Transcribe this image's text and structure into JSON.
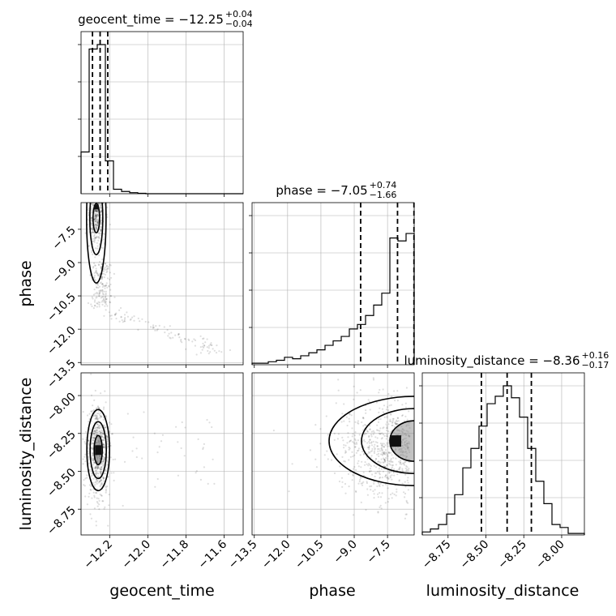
{
  "chart_data": {
    "type": "corner",
    "grid": true,
    "parameters": [
      "geocent_time",
      "phase",
      "luminosity_distance"
    ],
    "axis_labels": {
      "geocent_time": "geocent_time",
      "phase": "phase",
      "luminosity_distance": "luminosity_distance"
    },
    "ranges": {
      "geocent_time": [
        -12.35,
        -11.5
      ],
      "phase": [
        -13.6,
        -6.3
      ],
      "luminosity_distance": [
        -8.92,
        -7.85
      ]
    },
    "ticks": {
      "geocent_time": {
        "values": [
          -12.2,
          -12.0,
          -11.8,
          -11.6
        ],
        "labels": [
          "−12.2",
          "−12.0",
          "−11.8",
          "−11.6"
        ]
      },
      "phase_x": {
        "values": [
          -13.5,
          -12.0,
          -10.5,
          -9.0,
          -7.5
        ],
        "labels": [
          "−13.5",
          "−12.0",
          "−10.5",
          "−9.0",
          "−7.5"
        ]
      },
      "phase_y": {
        "values": [
          -13.5,
          -12.0,
          -10.5,
          -9.0,
          -7.5
        ],
        "labels": [
          "−13.5",
          "−12.0",
          "−10.5",
          "−9.0",
          "−7.5"
        ]
      },
      "luminosity_distance_x": {
        "values": [
          -8.75,
          -8.5,
          -8.25,
          -8.0
        ],
        "labels": [
          "−8.75",
          "−8.50",
          "−8.25",
          "−8.00"
        ]
      },
      "luminosity_distance_y": {
        "values": [
          -8.75,
          -8.5,
          -8.25,
          -8.0
        ],
        "labels": [
          "−8.75",
          "−8.50",
          "−8.25",
          "−8.00"
        ]
      }
    },
    "titles": [
      {
        "param": "geocent_time",
        "prefix": "geocent_time = −12.25",
        "plus": "+0.04",
        "minus": "−0.04"
      },
      {
        "param": "phase",
        "prefix": "phase = −7.05",
        "plus": "+0.74",
        "minus": "−1.66"
      },
      {
        "param": "luminosity_distance",
        "prefix": "luminosity_distance = −8.36",
        "plus": "+0.16",
        "minus": "−0.17"
      }
    ],
    "quantiles": {
      "geocent_time": [
        -12.29,
        -12.25,
        -12.21
      ],
      "phase": [
        -8.71,
        -7.05,
        -6.31
      ],
      "luminosity_distance": [
        -8.53,
        -8.36,
        -8.2
      ]
    },
    "histograms": {
      "geocent_time": {
        "edges_start": -12.35,
        "bin_width": 0.0425,
        "counts": [
          0.28,
          0.97,
          1.0,
          0.22,
          0.03,
          0.015,
          0.007,
          0.003,
          0,
          0,
          0,
          0,
          0,
          0,
          0,
          0,
          0,
          0,
          0,
          0
        ]
      },
      "phase": {
        "edges_start": -13.6,
        "bin_width": 0.365,
        "counts": [
          0.01,
          0.01,
          0.02,
          0.03,
          0.05,
          0.04,
          0.06,
          0.08,
          0.1,
          0.13,
          0.16,
          0.19,
          0.24,
          0.27,
          0.33,
          0.4,
          0.48,
          0.85,
          0.83,
          0.88
        ]
      },
      "luminosity_distance": {
        "edges_start": -8.92,
        "bin_width": 0.0535,
        "counts": [
          0.02,
          0.04,
          0.07,
          0.14,
          0.27,
          0.45,
          0.58,
          0.73,
          0.88,
          0.93,
          1.0,
          0.92,
          0.79,
          0.58,
          0.36,
          0.21,
          0.07,
          0.05,
          0.01,
          0.01
        ]
      }
    }
  }
}
